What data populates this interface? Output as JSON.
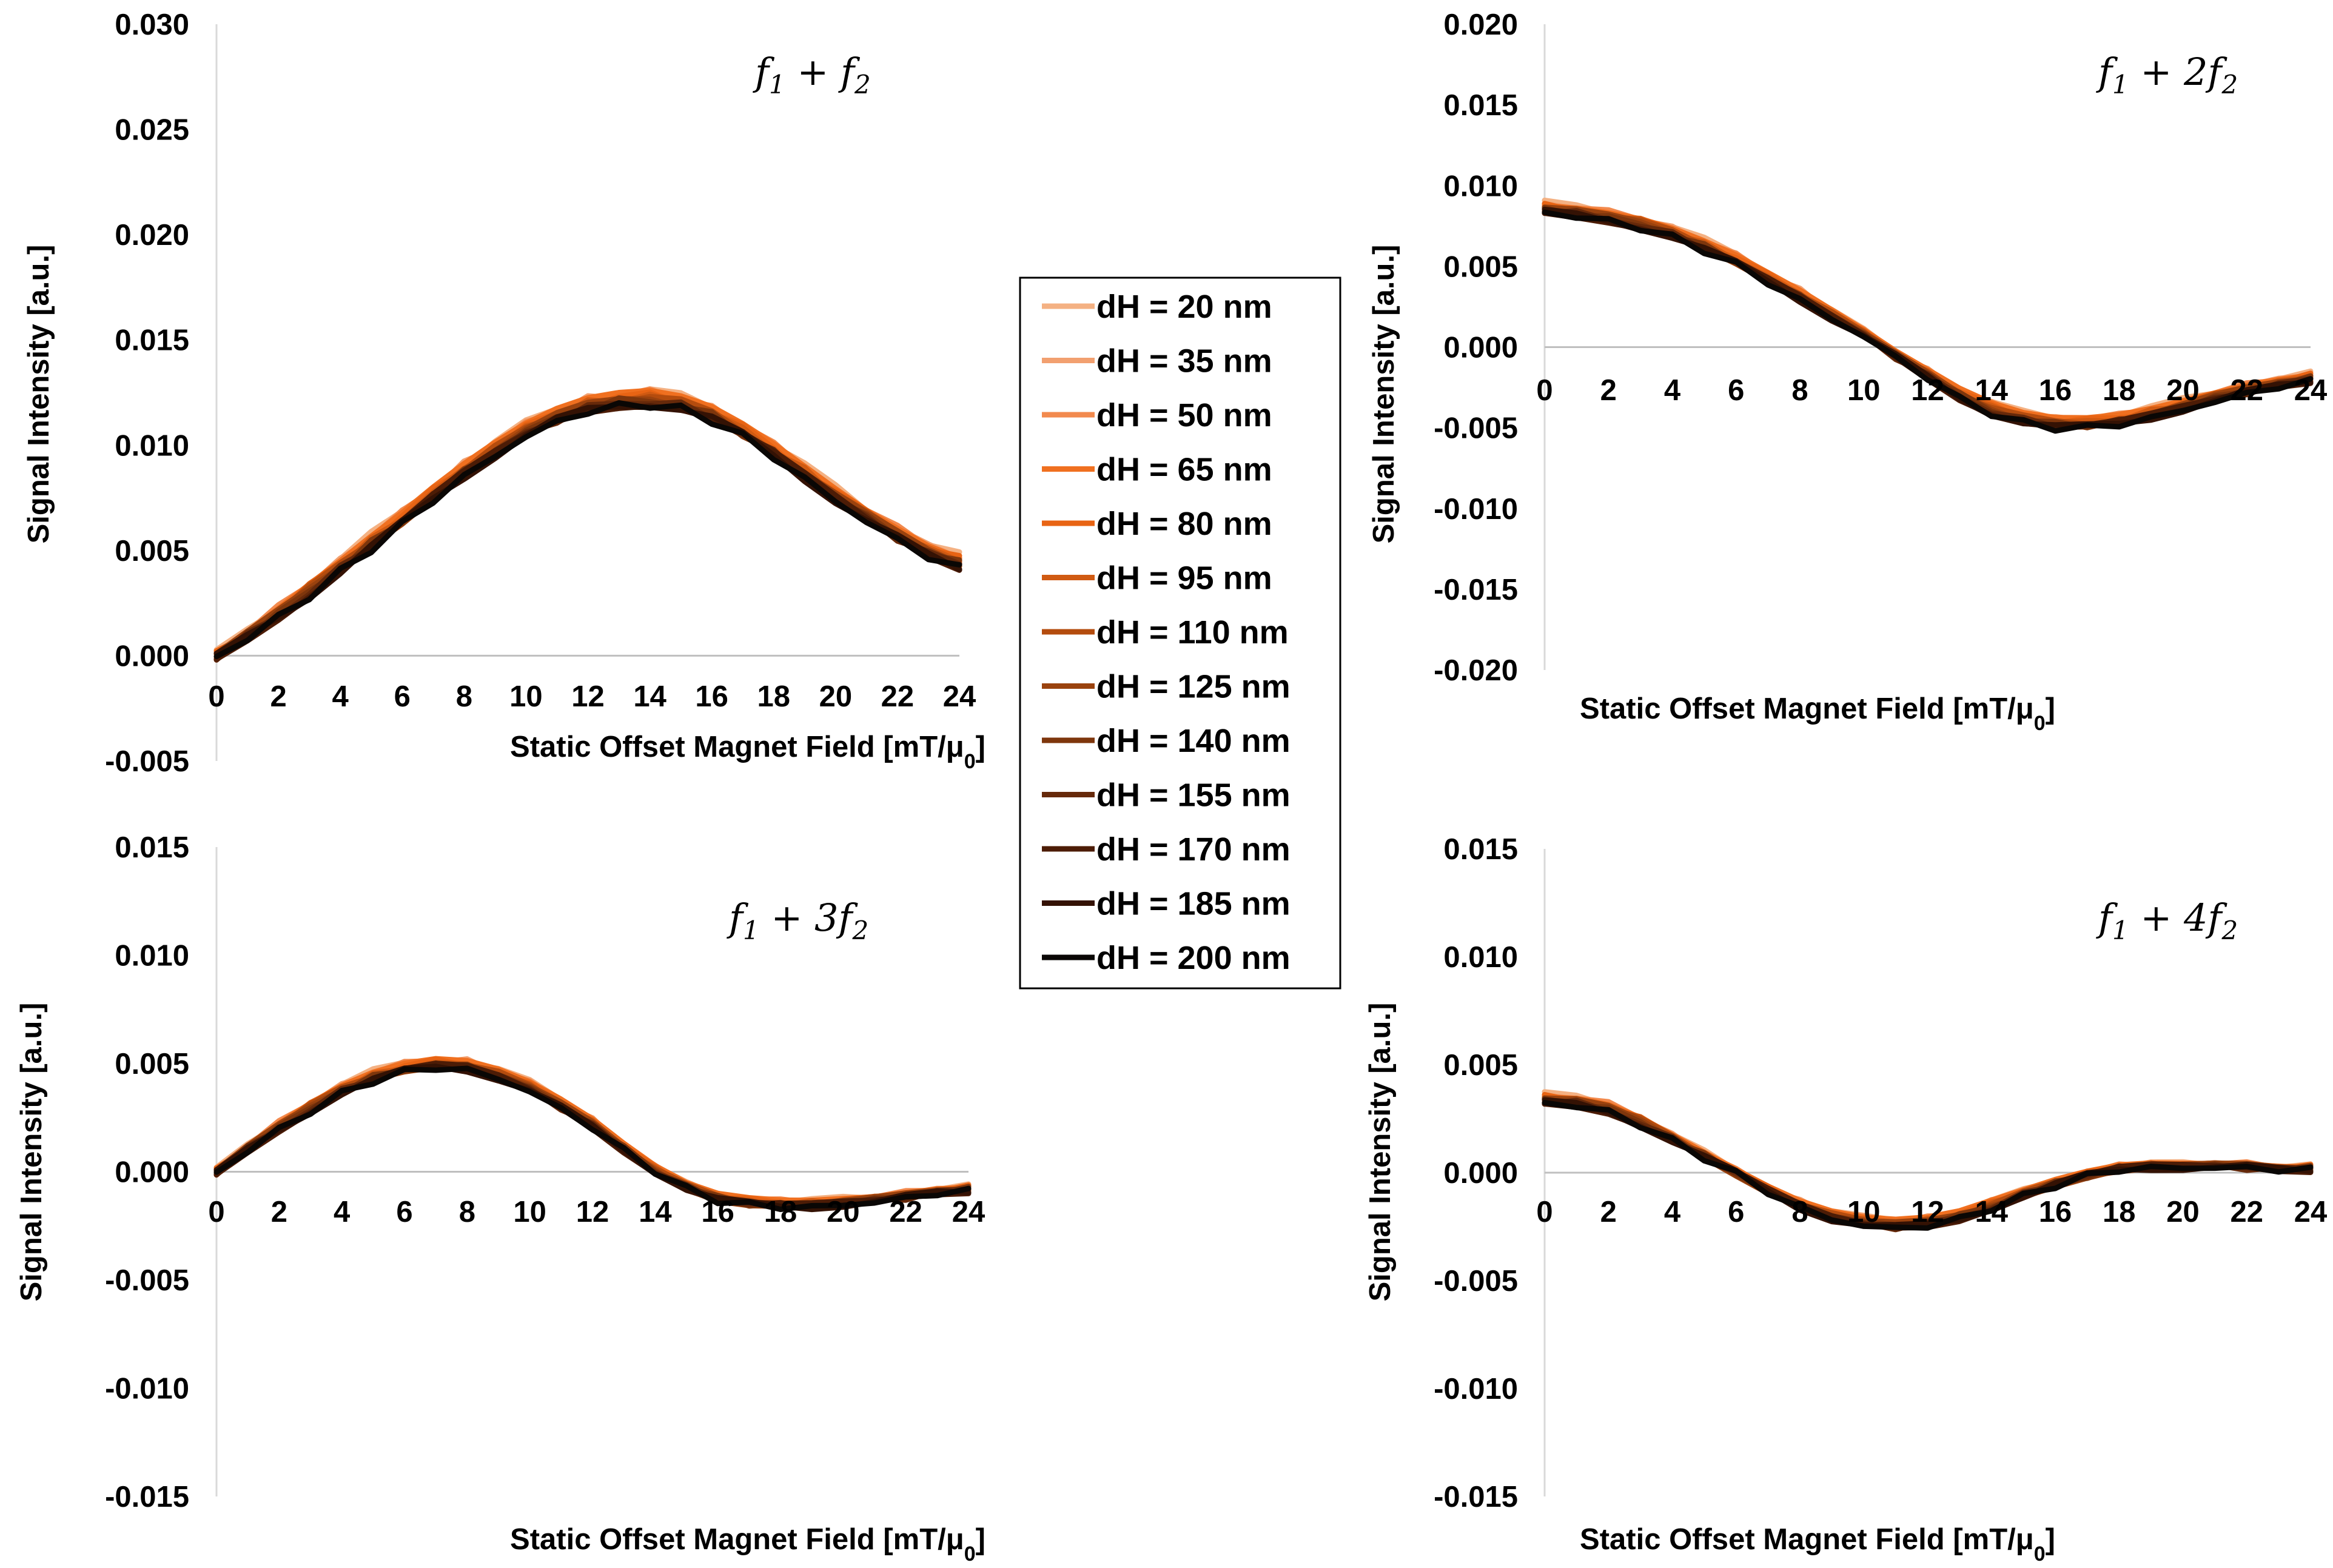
{
  "legend": {
    "title": "",
    "placement": "center",
    "entries": [
      "dH = 20 nm",
      "dH = 35 nm",
      "dH = 50 nm",
      "dH = 65 nm",
      "dH = 80 nm",
      "dH = 95 nm",
      "dH = 110 nm",
      "dH = 125 nm",
      "dH = 140 nm",
      "dH = 155 nm",
      "dH = 170 nm",
      "dH = 185 nm",
      "dH = 200 nm"
    ],
    "colors": [
      "#F4B183",
      "#F2A070",
      "#F28A4E",
      "#F07020",
      "#E86414",
      "#D05A12",
      "#B44C0E",
      "#9A420E",
      "#7E360C",
      "#66290A",
      "#4C1C06",
      "#341204",
      "#0A0705"
    ]
  },
  "chart_data": [
    {
      "type": "line",
      "title": "",
      "panel_label": {
        "main": "f",
        "sub1": "1",
        "mid": "+ f",
        "sub2": "2"
      },
      "xlabel": "Static Offset Magnet Field [mT/μ0]",
      "ylabel": "Signal Intensity [a.u.]",
      "xlim": [
        0,
        24
      ],
      "ylim": [
        -0.005,
        0.03
      ],
      "x_ticks": [
        "0",
        "2",
        "4",
        "6",
        "8",
        "10",
        "12",
        "14",
        "16",
        "18",
        "20",
        "22",
        "24"
      ],
      "y_ticks": [
        "0.030",
        "0.025",
        "0.020",
        "0.015",
        "0.010",
        "0.005",
        "0.000",
        "-0.005"
      ],
      "grid": false,
      "x": [
        0,
        1,
        2,
        3,
        4,
        5,
        6,
        7,
        8,
        9,
        10,
        11,
        12,
        13,
        14,
        15,
        16,
        17,
        18,
        19,
        20,
        21,
        22,
        23,
        24
      ],
      "base": [
        0.0,
        0.001,
        0.00205,
        0.00315,
        0.00425,
        0.0054,
        0.0065,
        0.0077,
        0.0088,
        0.0098,
        0.0107,
        0.0114,
        0.0119,
        0.01215,
        0.01225,
        0.012,
        0.0115,
        0.0107,
        0.00975,
        0.0087,
        0.00765,
        0.00665,
        0.0058,
        0.005,
        0.00445
      ],
      "spread": 0.0006,
      "jitter": 0.0002
    },
    {
      "type": "line",
      "title": "",
      "panel_label": {
        "main": "f",
        "sub1": "1",
        "mid": "+ 2f",
        "sub2": "2"
      },
      "xlabel": "Static Offset Magnet Field [mT/μ0]",
      "ylabel": "Signal Intensity [a.u.]",
      "xlim": [
        0,
        24
      ],
      "ylim": [
        -0.02,
        0.02
      ],
      "x_ticks": [
        "0",
        "2",
        "4",
        "6",
        "8",
        "10",
        "12",
        "14",
        "16",
        "18",
        "20",
        "22",
        "24"
      ],
      "y_ticks": [
        "0.020",
        "0.015",
        "0.010",
        "0.005",
        "0.000",
        "-0.005",
        "-0.010",
        "-0.015",
        "-0.020"
      ],
      "grid": false,
      "x": [
        0,
        1,
        2,
        3,
        4,
        5,
        6,
        7,
        8,
        9,
        10,
        11,
        12,
        13,
        14,
        15,
        16,
        17,
        18,
        19,
        20,
        21,
        22,
        23,
        24
      ],
      "base": [
        0.0086,
        0.0084,
        0.0081,
        0.0077,
        0.0071,
        0.0063,
        0.0054,
        0.0043,
        0.0032,
        0.002,
        0.0008,
        -0.0005,
        -0.0017,
        -0.0029,
        -0.0038,
        -0.0044,
        -0.0047,
        -0.0047,
        -0.0045,
        -0.0041,
        -0.0036,
        -0.0031,
        -0.0026,
        -0.0022,
        -0.0019
      ],
      "spread": 0.0006,
      "jitter": 0.0002
    },
    {
      "type": "line",
      "title": "",
      "panel_label": {
        "main": "f",
        "sub1": "1",
        "mid": "+ 3f",
        "sub2": "2"
      },
      "xlabel": "Static Offset Magnet Field [mT/μ0]",
      "ylabel": "Signal Intensity [a.u.]",
      "xlim": [
        0,
        24
      ],
      "ylim": [
        -0.015,
        0.015
      ],
      "x_ticks": [
        "0",
        "2",
        "4",
        "6",
        "8",
        "10",
        "12",
        "14",
        "16",
        "18",
        "20",
        "22",
        "24"
      ],
      "y_ticks": [
        "0.015",
        "0.010",
        "0.005",
        "0.000",
        "-0.005",
        "-0.010",
        "-0.015"
      ],
      "grid": false,
      "x": [
        0,
        1,
        2,
        3,
        4,
        5,
        6,
        7,
        8,
        9,
        10,
        11,
        12,
        13,
        14,
        15,
        16,
        17,
        18,
        19,
        20,
        21,
        22,
        23,
        24
      ],
      "base": [
        0.0,
        0.0011,
        0.0021,
        0.003,
        0.0038,
        0.0044,
        0.0048,
        0.005,
        0.0049,
        0.0045,
        0.0039,
        0.0031,
        0.0022,
        0.0011,
        0.0001,
        -0.0007,
        -0.0012,
        -0.0014,
        -0.0015,
        -0.0015,
        -0.0014,
        -0.0013,
        -0.0011,
        -0.0009,
        -0.0008
      ],
      "spread": 0.0004,
      "jitter": 0.00015
    },
    {
      "type": "line",
      "title": "",
      "panel_label": {
        "main": "f",
        "sub1": "1",
        "mid": "+ 4f",
        "sub2": "2"
      },
      "xlabel": "Static Offset Magnet Field [mT/μ0]",
      "ylabel": "Signal Intensity [a.u.]",
      "xlim": [
        0,
        24
      ],
      "ylim": [
        -0.015,
        0.015
      ],
      "x_ticks": [
        "0",
        "2",
        "4",
        "6",
        "8",
        "10",
        "12",
        "14",
        "16",
        "18",
        "20",
        "22",
        "24"
      ],
      "y_ticks": [
        "0.015",
        "0.010",
        "0.005",
        "0.000",
        "-0.005",
        "-0.010",
        "-0.015"
      ],
      "grid": false,
      "x": [
        0,
        1,
        2,
        3,
        4,
        5,
        6,
        7,
        8,
        9,
        10,
        11,
        12,
        13,
        14,
        15,
        16,
        17,
        18,
        19,
        20,
        21,
        22,
        23,
        24
      ],
      "base": [
        0.0034,
        0.0033,
        0.003,
        0.0024,
        0.0016,
        0.0008,
        0.0,
        -0.0008,
        -0.0015,
        -0.002,
        -0.0023,
        -0.0024,
        -0.0023,
        -0.002,
        -0.0015,
        -0.001,
        -0.0005,
        -0.0001,
        0.0002,
        0.0003,
        0.0003,
        0.0003,
        0.0003,
        0.0002,
        0.0002
      ],
      "spread": 0.0004,
      "jitter": 0.00015
    }
  ]
}
